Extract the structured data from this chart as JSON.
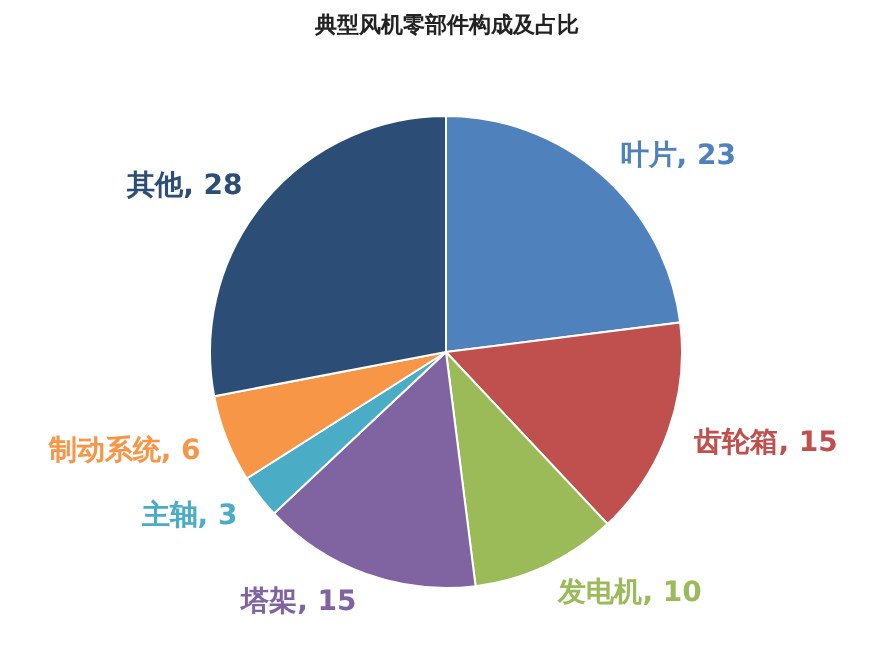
{
  "chart_data": {
    "type": "pie",
    "title": "典型风机零部件构成及占比",
    "categories": [
      "叶片",
      "齿轮箱",
      "发电机",
      "塔架",
      "主轴",
      "制动系统",
      "其他"
    ],
    "values": [
      23,
      15,
      10,
      15,
      3,
      6,
      28
    ],
    "colors": [
      "#4f81bd",
      "#c0504d",
      "#9bbb59",
      "#8064a2",
      "#4bacc6",
      "#f79646",
      "#2c4d75"
    ],
    "value_labels": [
      ", 23",
      ", 15",
      ", 10",
      ", 15",
      ", 3",
      ", 6",
      ", 28"
    ]
  }
}
